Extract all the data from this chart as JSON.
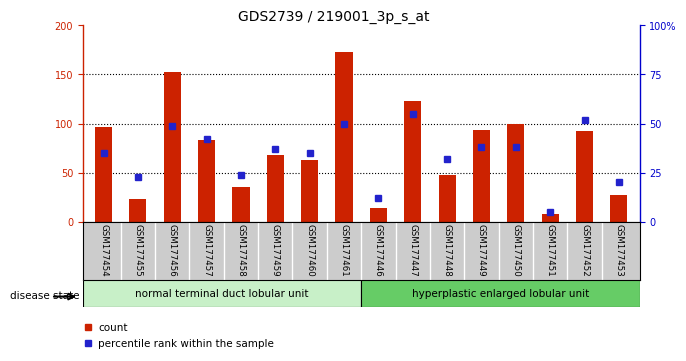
{
  "title": "GDS2739 / 219001_3p_s_at",
  "samples": [
    "GSM177454",
    "GSM177455",
    "GSM177456",
    "GSM177457",
    "GSM177458",
    "GSM177459",
    "GSM177460",
    "GSM177461",
    "GSM177446",
    "GSM177447",
    "GSM177448",
    "GSM177449",
    "GSM177450",
    "GSM177451",
    "GSM177452",
    "GSM177453"
  ],
  "counts": [
    96,
    23,
    152,
    83,
    35,
    68,
    63,
    173,
    14,
    123,
    48,
    93,
    100,
    8,
    92,
    27
  ],
  "percentiles": [
    35,
    23,
    49,
    42,
    24,
    37,
    35,
    50,
    12,
    55,
    32,
    38,
    38,
    5,
    52,
    20
  ],
  "group1_label": "normal terminal duct lobular unit",
  "group2_label": "hyperplastic enlarged lobular unit",
  "group1_count": 8,
  "group2_count": 8,
  "disease_state_label": "disease state",
  "bar_color": "#cc2200",
  "dot_color": "#2222cc",
  "left_axis_color": "#cc2200",
  "right_axis_color": "#0000cc",
  "ylim_left": [
    0,
    200
  ],
  "ylim_right": [
    0,
    100
  ],
  "yticks_left": [
    0,
    50,
    100,
    150,
    200
  ],
  "yticks_right": [
    0,
    25,
    50,
    75,
    100
  ],
  "ytick_labels_right": [
    "0",
    "25",
    "50",
    "75",
    "100%"
  ],
  "group1_color": "#c8f0c8",
  "group2_color": "#66cc66",
  "label_bg_color": "#cccccc",
  "legend_count_label": "count",
  "legend_pct_label": "percentile rank within the sample",
  "bg_color": "#ffffff",
  "title_fontsize": 10,
  "tick_fontsize": 7,
  "bar_width": 0.5
}
